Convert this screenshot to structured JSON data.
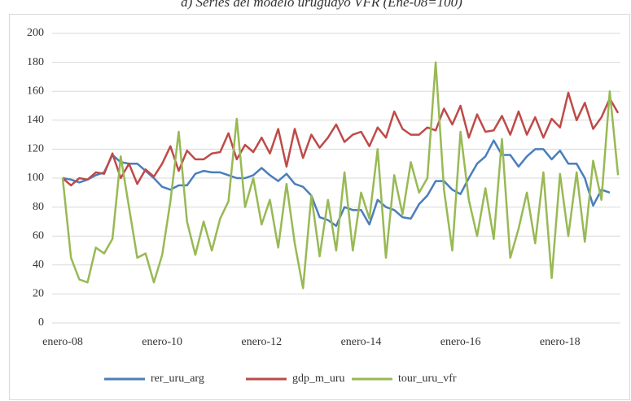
{
  "chart_data": {
    "type": "line",
    "title": "a) Series del modelo uruguayo VFR (Ene-08=100)",
    "categories": [
      "enero-08",
      null,
      null,
      null,
      null,
      null,
      null,
      null,
      null,
      null,
      null,
      null,
      "enero-10",
      null,
      null,
      null,
      null,
      null,
      null,
      null,
      null,
      null,
      null,
      null,
      "enero-12",
      null,
      null,
      null,
      null,
      null,
      null,
      null,
      null,
      null,
      null,
      null,
      "enero-14",
      null,
      null,
      null,
      null,
      null,
      null,
      null,
      null,
      null,
      null,
      null,
      "enero-16",
      null,
      null,
      null,
      null,
      null,
      null,
      null,
      null,
      null,
      null,
      null,
      "enero-18",
      null,
      null,
      null,
      null,
      null,
      null,
      null
    ],
    "series": [
      {
        "name": "rer_uru_arg",
        "color": "#4a7ebb",
        "values": [
          100,
          99,
          97,
          99,
          102,
          104,
          116,
          111,
          110,
          110,
          105,
          100,
          94,
          92,
          95,
          95,
          103,
          105,
          104,
          104,
          102,
          100,
          100,
          102,
          107,
          102,
          98,
          103,
          96,
          94,
          88,
          73,
          71,
          67,
          80,
          78,
          78,
          68,
          85,
          80,
          78,
          73,
          72,
          82,
          88,
          98,
          98,
          92,
          89,
          100,
          110,
          115,
          126,
          116,
          116,
          108,
          115,
          120,
          120,
          113,
          119,
          110,
          110,
          100,
          81,
          92,
          90,
          null
        ]
      },
      {
        "name": "gdp_m_uru",
        "color": "#be4b48",
        "values": [
          100,
          95,
          100,
          99,
          104,
          103,
          117,
          100,
          110,
          96,
          106,
          101,
          110,
          122,
          105,
          119,
          113,
          113,
          117,
          118,
          131,
          113,
          123,
          118,
          128,
          117,
          134,
          108,
          134,
          114,
          130,
          121,
          128,
          137,
          125,
          130,
          132,
          122,
          135,
          128,
          146,
          134,
          130,
          130,
          135,
          133,
          148,
          137,
          150,
          128,
          144,
          132,
          133,
          143,
          130,
          146,
          130,
          142,
          128,
          141,
          135,
          159,
          140,
          152,
          134,
          142,
          155,
          145
        ]
      },
      {
        "name": "tour_uru_vfr",
        "color": "#98b954",
        "values": [
          100,
          45,
          30,
          28,
          52,
          48,
          58,
          115,
          80,
          45,
          48,
          28,
          47,
          84,
          132,
          70,
          47,
          70,
          50,
          72,
          84,
          141,
          80,
          100,
          68,
          85,
          52,
          96,
          55,
          24,
          88,
          46,
          85,
          50,
          104,
          50,
          90,
          72,
          120,
          45,
          102,
          75,
          111,
          90,
          100,
          180,
          92,
          50,
          132,
          85,
          60,
          93,
          58,
          127,
          45,
          65,
          90,
          55,
          104,
          31,
          103,
          60,
          104,
          56,
          112,
          85,
          160,
          102
        ]
      }
    ],
    "ylim": [
      0,
      200
    ],
    "yticks": [
      0,
      20,
      40,
      60,
      80,
      100,
      120,
      140,
      160,
      180,
      200
    ],
    "grid": true,
    "legend": "bottom"
  }
}
